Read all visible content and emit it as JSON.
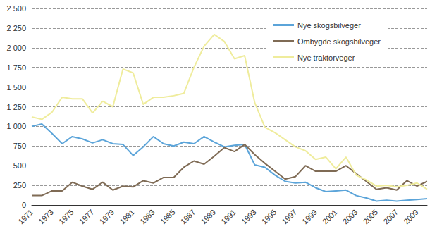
{
  "chart_data": {
    "type": "line",
    "categories": [
      "1971",
      null,
      "1973",
      null,
      "1975",
      null,
      "1977",
      null,
      "1979",
      null,
      "1981",
      null,
      "1983",
      null,
      "1985",
      null,
      "1987",
      null,
      "1989",
      null,
      "1991",
      null,
      "1993",
      null,
      "1995",
      null,
      "1997",
      null,
      "1999",
      null,
      "2001",
      null,
      "2003",
      null,
      "2005",
      null,
      "2007",
      null,
      "2009",
      null
    ],
    "series": [
      {
        "name": "Nye skogsbilveger",
        "color": "#5ba4d9",
        "values": [
          1000,
          1030,
          910,
          780,
          870,
          840,
          790,
          830,
          780,
          770,
          630,
          740,
          870,
          780,
          750,
          800,
          780,
          870,
          800,
          740,
          760,
          770,
          510,
          480,
          380,
          300,
          280,
          290,
          220,
          170,
          180,
          190,
          120,
          90,
          50,
          60,
          50,
          60,
          70,
          80
        ]
      },
      {
        "name": "Ombygde skogsbilveger",
        "color": "#7f6b55",
        "values": [
          120,
          120,
          180,
          180,
          290,
          240,
          200,
          290,
          190,
          240,
          230,
          310,
          280,
          350,
          350,
          480,
          560,
          520,
          620,
          730,
          680,
          770,
          640,
          530,
          430,
          330,
          360,
          500,
          430,
          430,
          430,
          500,
          400,
          300,
          200,
          220,
          190,
          310,
          240,
          300
        ]
      },
      {
        "name": "Nye traktorveger",
        "color": "#efec9c",
        "values": [
          1120,
          1090,
          1180,
          1370,
          1350,
          1350,
          1170,
          1320,
          1250,
          1730,
          1680,
          1280,
          1370,
          1370,
          1390,
          1420,
          1750,
          2020,
          2170,
          2080,
          1860,
          1900,
          1300,
          990,
          920,
          830,
          740,
          690,
          580,
          610,
          460,
          610,
          380,
          320,
          240,
          250,
          230,
          250,
          280,
          200
        ]
      }
    ],
    "ylim": [
      0,
      2500
    ],
    "yticks": [
      0,
      250,
      500,
      750,
      {
        "value": 1000,
        "label": "1 000"
      },
      {
        "value": 1250,
        "label": "1 250"
      },
      {
        "value": 1500,
        "label": "1 500"
      },
      {
        "value": 1750,
        "label": "1 750"
      },
      {
        "value": 2000,
        "label": "2 000"
      },
      {
        "value": 2250,
        "label": "2 250"
      },
      {
        "value": 2500,
        "label": "2 500"
      }
    ],
    "grid": true,
    "legend": "upper right"
  }
}
